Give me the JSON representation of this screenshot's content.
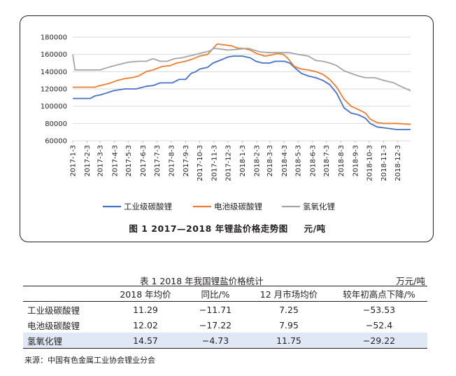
{
  "chart_data": {
    "type": "line",
    "title": "图 1  2017—2018 年锂盐价格走势图",
    "unit": "元/吨",
    "ylim": [
      60000,
      180000
    ],
    "yticks": [
      "180000",
      "160000",
      "140000",
      "120000",
      "100000",
      "80000",
      "60000"
    ],
    "ytick_values": [
      180000,
      160000,
      140000,
      120000,
      100000,
      80000,
      60000
    ],
    "xtick_labels": [
      "2017-1-3",
      "2017-2-3",
      "2017-3-3",
      "2017-4-3",
      "2017-5-3",
      "2017-6-3",
      "2017-7-3",
      "2017-8-3",
      "2017-9-3",
      "2017-10-3",
      "2017-11-3",
      "2017-12-3",
      "2018-1-3",
      "2018-2-3",
      "2018-3-3",
      "2018-4-3",
      "2018-5-3",
      "2018-6-3",
      "2018-7-3",
      "2018-8-3",
      "2018-9-3",
      "2018-10-3",
      "2018-11-3",
      "2018-12-3"
    ],
    "legend_position": "bottom",
    "grid": "horizontal",
    "series": [
      {
        "name": "工业级碳酸锂",
        "color": "#4472c4",
        "points": [
          [
            "2017-01-03",
            109000
          ],
          [
            "2017-02-10",
            109000
          ],
          [
            "2017-02-20",
            112000
          ],
          [
            "2017-03-03",
            113000
          ],
          [
            "2017-03-15",
            115000
          ],
          [
            "2017-04-01",
            118000
          ],
          [
            "2017-04-25",
            120000
          ],
          [
            "2017-05-20",
            120000
          ],
          [
            "2017-06-10",
            123000
          ],
          [
            "2017-06-25",
            124000
          ],
          [
            "2017-07-10",
            127000
          ],
          [
            "2017-08-05",
            127000
          ],
          [
            "2017-08-20",
            131000
          ],
          [
            "2017-09-03",
            131000
          ],
          [
            "2017-09-15",
            138000
          ],
          [
            "2017-09-25",
            140000
          ],
          [
            "2017-10-03",
            143000
          ],
          [
            "2017-10-20",
            145000
          ],
          [
            "2017-11-01",
            150000
          ],
          [
            "2017-11-20",
            154000
          ],
          [
            "2017-12-03",
            157000
          ],
          [
            "2017-12-15",
            158000
          ],
          [
            "2018-01-03",
            158000
          ],
          [
            "2018-01-20",
            156000
          ],
          [
            "2018-02-01",
            152000
          ],
          [
            "2018-02-15",
            150000
          ],
          [
            "2018-03-03",
            150000
          ],
          [
            "2018-03-15",
            152000
          ],
          [
            "2018-04-03",
            152000
          ],
          [
            "2018-04-15",
            150000
          ],
          [
            "2018-04-25",
            145000
          ],
          [
            "2018-05-10",
            138000
          ],
          [
            "2018-05-25",
            135000
          ],
          [
            "2018-06-10",
            133000
          ],
          [
            "2018-06-25",
            130000
          ],
          [
            "2018-07-10",
            125000
          ],
          [
            "2018-07-25",
            115000
          ],
          [
            "2018-08-10",
            98000
          ],
          [
            "2018-08-25",
            92000
          ],
          [
            "2018-09-10",
            90000
          ],
          [
            "2018-09-25",
            86000
          ],
          [
            "2018-10-05",
            80000
          ],
          [
            "2018-10-20",
            76000
          ],
          [
            "2018-11-03",
            75000
          ],
          [
            "2018-12-01",
            73000
          ],
          [
            "2018-12-31",
            73000
          ]
        ]
      },
      {
        "name": "电池级碳酸锂",
        "color": "#ed7d31",
        "points": [
          [
            "2017-01-03",
            122000
          ],
          [
            "2017-02-20",
            122000
          ],
          [
            "2017-03-03",
            124000
          ],
          [
            "2017-03-20",
            126000
          ],
          [
            "2017-04-10",
            130000
          ],
          [
            "2017-04-25",
            132000
          ],
          [
            "2017-05-10",
            133000
          ],
          [
            "2017-05-25",
            135000
          ],
          [
            "2017-06-10",
            140000
          ],
          [
            "2017-06-25",
            142000
          ],
          [
            "2017-07-15",
            146000
          ],
          [
            "2017-08-01",
            147000
          ],
          [
            "2017-08-15",
            150000
          ],
          [
            "2017-09-03",
            152000
          ],
          [
            "2017-09-20",
            155000
          ],
          [
            "2017-10-03",
            158000
          ],
          [
            "2017-10-20",
            160000
          ],
          [
            "2017-11-03",
            168000
          ],
          [
            "2017-11-10",
            172000
          ],
          [
            "2017-11-25",
            171000
          ],
          [
            "2017-12-10",
            170000
          ],
          [
            "2017-12-25",
            167000
          ],
          [
            "2018-01-05",
            167000
          ],
          [
            "2018-01-20",
            165000
          ],
          [
            "2018-02-03",
            161000
          ],
          [
            "2018-02-20",
            158000
          ],
          [
            "2018-03-05",
            159000
          ],
          [
            "2018-03-20",
            161000
          ],
          [
            "2018-04-01",
            160000
          ],
          [
            "2018-04-10",
            156000
          ],
          [
            "2018-04-25",
            146000
          ],
          [
            "2018-05-10",
            143000
          ],
          [
            "2018-05-25",
            142000
          ],
          [
            "2018-06-10",
            140000
          ],
          [
            "2018-06-25",
            137000
          ],
          [
            "2018-07-10",
            131000
          ],
          [
            "2018-07-25",
            122000
          ],
          [
            "2018-08-10",
            108000
          ],
          [
            "2018-08-25",
            100000
          ],
          [
            "2018-09-10",
            96000
          ],
          [
            "2018-09-25",
            92000
          ],
          [
            "2018-10-05",
            85000
          ],
          [
            "2018-10-20",
            81000
          ],
          [
            "2018-11-03",
            80000
          ],
          [
            "2018-12-01",
            80000
          ],
          [
            "2018-12-31",
            79000
          ]
        ]
      },
      {
        "name": "氢氧化锂",
        "color": "#a5a5a5",
        "points": [
          [
            "2017-01-03",
            160000
          ],
          [
            "2017-01-08",
            142000
          ],
          [
            "2017-01-15",
            142000
          ],
          [
            "2017-03-03",
            142000
          ],
          [
            "2017-03-20",
            145000
          ],
          [
            "2017-04-10",
            148000
          ],
          [
            "2017-05-03",
            151000
          ],
          [
            "2017-05-25",
            152000
          ],
          [
            "2017-06-10",
            152000
          ],
          [
            "2017-06-25",
            155000
          ],
          [
            "2017-07-10",
            152000
          ],
          [
            "2017-07-25",
            152000
          ],
          [
            "2017-08-10",
            155000
          ],
          [
            "2017-08-25",
            156000
          ],
          [
            "2017-09-10",
            158000
          ],
          [
            "2017-09-25",
            160000
          ],
          [
            "2017-10-10",
            162000
          ],
          [
            "2017-10-25",
            164000
          ],
          [
            "2017-11-03",
            167000
          ],
          [
            "2017-11-20",
            166000
          ],
          [
            "2017-12-03",
            165000
          ],
          [
            "2017-12-25",
            166000
          ],
          [
            "2018-01-15",
            167000
          ],
          [
            "2018-02-10",
            163000
          ],
          [
            "2018-03-03",
            162000
          ],
          [
            "2018-03-25",
            162000
          ],
          [
            "2018-04-15",
            162000
          ],
          [
            "2018-05-03",
            160000
          ],
          [
            "2018-05-25",
            158000
          ],
          [
            "2018-06-10",
            153000
          ],
          [
            "2018-06-25",
            152000
          ],
          [
            "2018-07-10",
            150000
          ],
          [
            "2018-07-25",
            147000
          ],
          [
            "2018-08-10",
            141000
          ],
          [
            "2018-08-25",
            138000
          ],
          [
            "2018-09-10",
            135000
          ],
          [
            "2018-09-25",
            133000
          ],
          [
            "2018-10-15",
            133000
          ],
          [
            "2018-11-03",
            130000
          ],
          [
            "2018-11-25",
            127000
          ],
          [
            "2018-12-10",
            123000
          ],
          [
            "2018-12-31",
            118000
          ]
        ]
      }
    ]
  },
  "table": {
    "title": "表 1   2018 年我国锂盐价格统计",
    "unit": "万元/吨",
    "headers": [
      "",
      "2018 年均价",
      "同比/%",
      "12 月市场均价",
      "较年初高点下降/%"
    ],
    "rows": [
      {
        "name": "工业级碳酸锂",
        "avg": "11.29",
        "yoy": "−11.71",
        "dec": "7.25",
        "drop": "−53.53"
      },
      {
        "name": "电池级碳酸锂",
        "avg": "12.02",
        "yoy": "−17.22",
        "dec": "7.95",
        "drop": "−52.4"
      },
      {
        "name": "氢氧化锂",
        "avg": "14.57",
        "yoy": "−4.73",
        "dec": "11.75",
        "drop": "−29.22"
      }
    ]
  },
  "source": "来源：中国有色金属工业协会锂业分会"
}
